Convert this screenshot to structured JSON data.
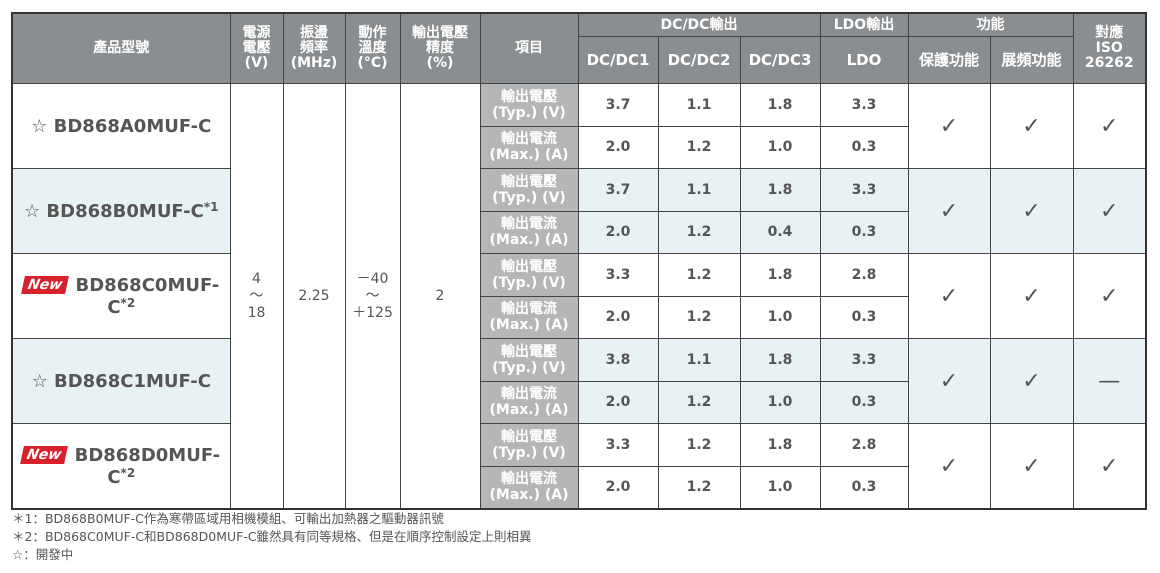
{
  "header": {
    "product": "產品型號",
    "supply_voltage": [
      "電源",
      "電壓",
      "(V)"
    ],
    "frequency": [
      "振盪",
      "頻率",
      "(MHz)"
    ],
    "temperature": [
      "動作",
      "溫度",
      "(°C)"
    ],
    "accuracy": [
      "輸出電壓",
      "精度",
      "(%)"
    ],
    "item": "項目",
    "dcdc_group": "DC/DC輸出",
    "ldo_group": "LDO輸出",
    "function_group": "功能",
    "iso": [
      "對應",
      "ISO",
      "26262"
    ],
    "dcdc1": "DC/DC1",
    "dcdc2": "DC/DC2",
    "dcdc3": "DC/DC3",
    "ldo": "LDO",
    "protection": "保護功能",
    "spread_spectrum": "展頻功能"
  },
  "shared_specs": {
    "supply_voltage": [
      "4",
      "～",
      "18"
    ],
    "frequency": "2.25",
    "temperature": [
      "－40",
      "～",
      "＋125"
    ],
    "accuracy": "2"
  },
  "item_labels": {
    "voltage": [
      "輸出電壓",
      "(Typ.) (V)"
    ],
    "current": [
      "輸出電流",
      "(Max.) (A)"
    ]
  },
  "products": [
    {
      "prefix": "☆",
      "badge": "",
      "name": "BD868A0MUF-C",
      "note": "",
      "voltage": [
        "3.7",
        "1.1",
        "1.8",
        "3.3"
      ],
      "current": [
        "2.0",
        "1.2",
        "1.0",
        "0.3"
      ],
      "protection": "✓",
      "spread": "✓",
      "iso": "✓"
    },
    {
      "prefix": "☆",
      "badge": "",
      "name": "BD868B0MUF-C",
      "note": "*1",
      "voltage": [
        "3.7",
        "1.1",
        "1.8",
        "3.3"
      ],
      "current": [
        "2.0",
        "1.2",
        "0.4",
        "0.3"
      ],
      "protection": "✓",
      "spread": "✓",
      "iso": "✓"
    },
    {
      "prefix": "",
      "badge": "New",
      "name": "BD868C0MUF-C",
      "note": "*2",
      "voltage": [
        "3.3",
        "1.2",
        "1.8",
        "2.8"
      ],
      "current": [
        "2.0",
        "1.2",
        "1.0",
        "0.3"
      ],
      "protection": "✓",
      "spread": "✓",
      "iso": "✓"
    },
    {
      "prefix": "☆",
      "badge": "",
      "name": "BD868C1MUF-C",
      "note": "",
      "voltage": [
        "3.8",
        "1.1",
        "1.8",
        "3.3"
      ],
      "current": [
        "2.0",
        "1.2",
        "1.0",
        "0.3"
      ],
      "protection": "✓",
      "spread": "✓",
      "iso": "—"
    },
    {
      "prefix": "",
      "badge": "New",
      "name": "BD868D0MUF-C",
      "note": "*2",
      "voltage": [
        "3.3",
        "1.2",
        "1.8",
        "2.8"
      ],
      "current": [
        "2.0",
        "1.2",
        "1.0",
        "0.3"
      ],
      "protection": "✓",
      "spread": "✓",
      "iso": "✓"
    }
  ],
  "notes": [
    "＊1：BD868B0MUF-C作為寒帶區域用相機模組、可輸出加熱器之驅動器訊號",
    "＊2：BD868C0MUF-C和BD868D0MUF-C雖然具有同等規格、但是在順序控制設定上則相異",
    "☆：開發中"
  ],
  "colors": {
    "header_bg": "#8b8e90",
    "item_bg": "#b4b6b8",
    "alt_row_bg": "#e8f2f5",
    "new_badge": "#d6222c"
  }
}
